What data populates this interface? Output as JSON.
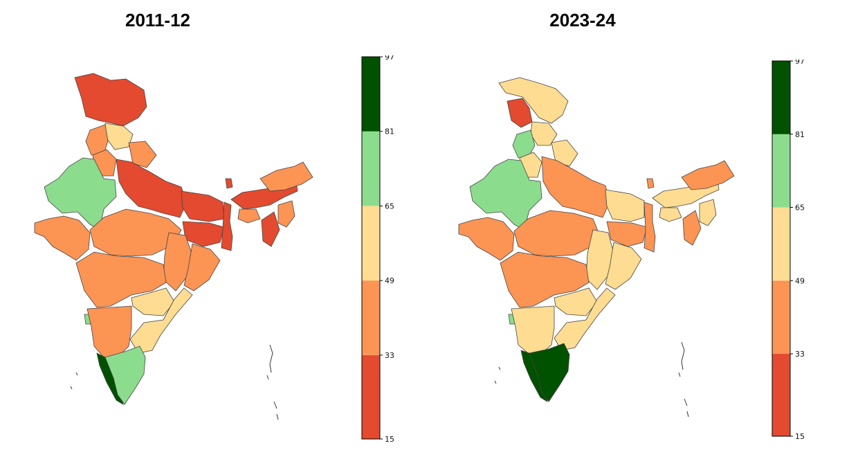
{
  "panels": [
    {
      "title": "2011-12"
    },
    {
      "title": "2023-24"
    }
  ],
  "colorbar": {
    "ticks": [
      "15",
      "33",
      "49",
      "65",
      "81",
      "97"
    ],
    "bands": [
      {
        "from": 15,
        "to": 33,
        "color": "#e34a2f"
      },
      {
        "from": 33,
        "to": 49,
        "color": "#fc9454"
      },
      {
        "from": 49,
        "to": 65,
        "color": "#fedc91"
      },
      {
        "from": 65,
        "to": 81,
        "color": "#8cdc8e"
      },
      {
        "from": 81,
        "to": 97,
        "color": "#005100"
      }
    ]
  }
}
